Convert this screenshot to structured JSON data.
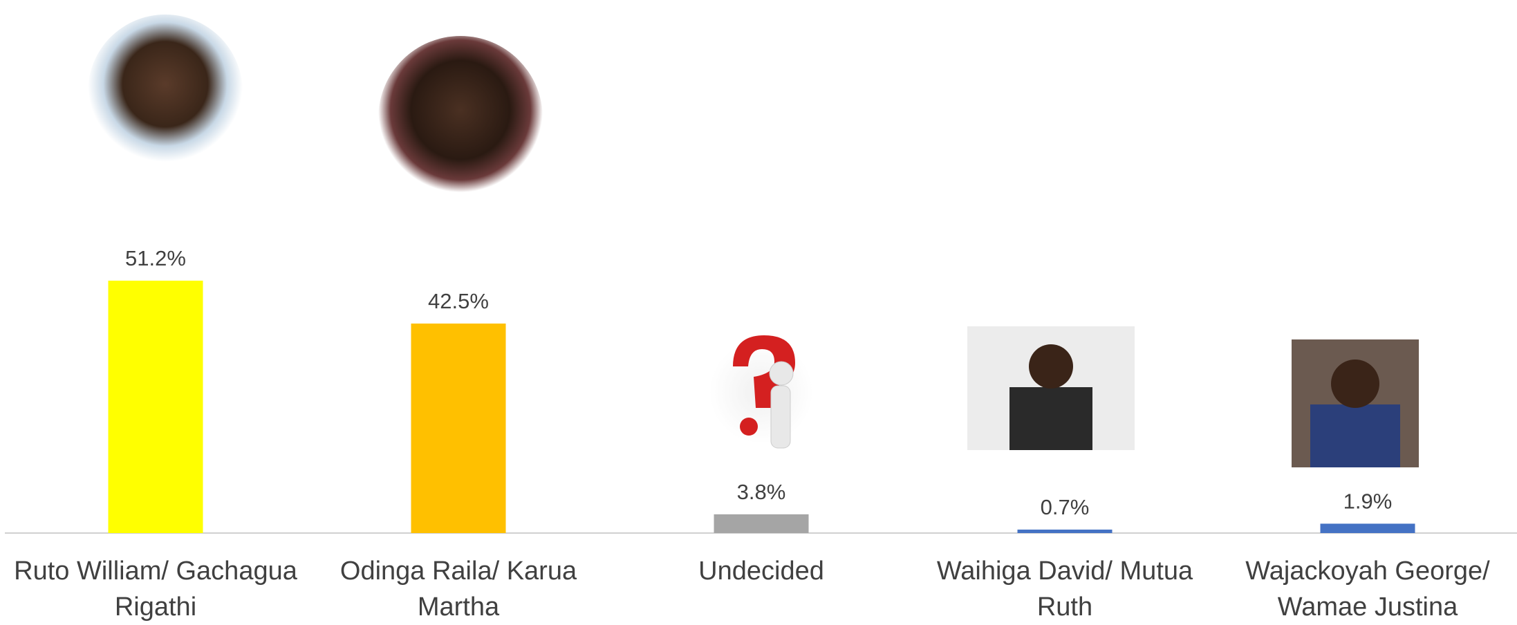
{
  "chart_data": {
    "type": "bar",
    "categories": [
      "Ruto William/ Gachagua Rigathi",
      "Odinga Raila/ Karua Martha",
      "Undecided",
      "Waihiga David/ Mutua Ruth",
      "Wajackoyah George/ Wamae Justina"
    ],
    "values": [
      51.2,
      42.5,
      3.8,
      0.7,
      1.9
    ],
    "value_labels": [
      "51.2%",
      "42.5%",
      "3.8%",
      "0.7%",
      "1.9%"
    ],
    "colors": [
      "#ffff00",
      "#ffc000",
      "#a5a5a5",
      "#4472c4",
      "#4472c4"
    ]
  }
}
